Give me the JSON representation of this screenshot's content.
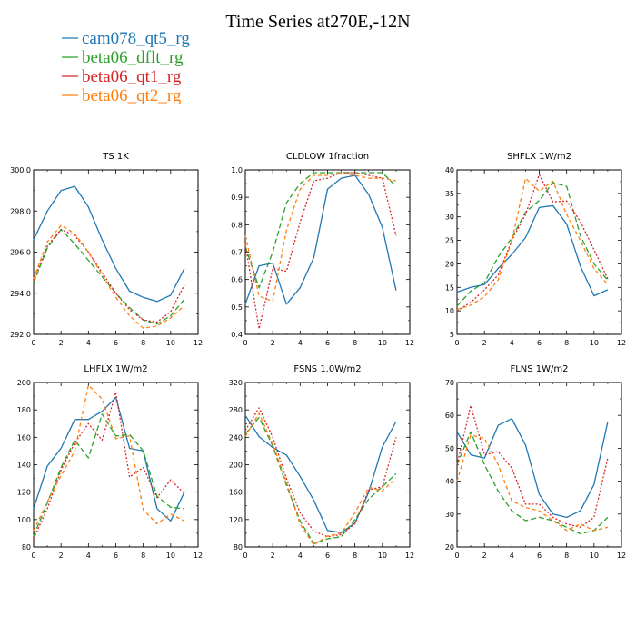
{
  "figure": {
    "title": "Time Series at270E,-12N"
  },
  "legend": [
    {
      "name": "cam078_qt5_rg",
      "color": "#1f77b4",
      "dash": "solid"
    },
    {
      "name": "beta06_dflt_rg",
      "color": "#2ca02c",
      "dash": "longdash"
    },
    {
      "name": "beta06_qt1_rg",
      "color": "#d62728",
      "dash": "dot"
    },
    {
      "name": "beta06_qt2_rg",
      "color": "#ff7f0e",
      "dash": "dash"
    }
  ],
  "chart_data": [
    {
      "type": "line",
      "title": "TS   1K",
      "xlim": [
        0,
        12
      ],
      "ylim": [
        292,
        300
      ],
      "xticks": [
        0,
        2,
        4,
        6,
        8,
        10,
        12
      ],
      "yticks": [
        292,
        294,
        296,
        298,
        300
      ],
      "ytick_labels": [
        "292.0",
        "294.0",
        "296.0",
        "298.0",
        "300.0"
      ],
      "x": [
        0,
        1,
        2,
        3,
        4,
        5,
        6,
        7,
        8,
        9,
        10,
        11
      ],
      "series": [
        {
          "name": "cam078_qt5_rg",
          "values": [
            296.6,
            298.0,
            299.0,
            299.2,
            298.2,
            296.6,
            295.2,
            294.1,
            293.8,
            293.6,
            293.9,
            295.2
          ]
        },
        {
          "name": "beta06_dflt_rg",
          "values": [
            294.5,
            296.2,
            297.1,
            296.4,
            295.6,
            294.8,
            294.0,
            293.3,
            292.7,
            292.5,
            292.9,
            293.7
          ]
        },
        {
          "name": "beta06_qt1_rg",
          "values": [
            294.6,
            296.3,
            297.1,
            296.8,
            296.0,
            295.0,
            294.0,
            293.2,
            292.7,
            292.6,
            293.1,
            294.4
          ]
        },
        {
          "name": "beta06_qt2_rg",
          "values": [
            294.7,
            296.5,
            297.3,
            296.9,
            296.0,
            294.9,
            293.8,
            292.9,
            292.3,
            292.4,
            292.8,
            293.4
          ]
        }
      ]
    },
    {
      "type": "line",
      "title": "CLDLOW   1fraction",
      "xlim": [
        0,
        12
      ],
      "ylim": [
        0.4,
        1.0
      ],
      "xticks": [
        0,
        2,
        4,
        6,
        8,
        10,
        12
      ],
      "yticks": [
        0.4,
        0.5,
        0.6,
        0.7,
        0.8,
        0.9,
        1.0
      ],
      "ytick_labels": [
        "0.4",
        "0.5",
        "0.6",
        "0.7",
        "0.8",
        "0.9",
        "1.0"
      ],
      "x": [
        0,
        1,
        2,
        3,
        4,
        5,
        6,
        7,
        8,
        9,
        10,
        11
      ],
      "series": [
        {
          "name": "cam078_qt5_rg",
          "values": [
            0.51,
            0.65,
            0.66,
            0.51,
            0.57,
            0.68,
            0.93,
            0.97,
            0.98,
            0.91,
            0.79,
            0.56
          ]
        },
        {
          "name": "beta06_dflt_rg",
          "values": [
            0.72,
            0.57,
            0.7,
            0.88,
            0.95,
            0.99,
            0.99,
            0.99,
            0.99,
            0.99,
            0.99,
            0.94
          ]
        },
        {
          "name": "beta06_qt1_rg",
          "values": [
            0.73,
            0.42,
            0.64,
            0.63,
            0.81,
            0.96,
            0.97,
            0.99,
            0.99,
            0.98,
            0.97,
            0.76
          ]
        },
        {
          "name": "beta06_qt2_rg",
          "values": [
            0.76,
            0.54,
            0.52,
            0.78,
            0.93,
            0.98,
            0.98,
            0.99,
            0.98,
            0.97,
            0.97,
            0.96
          ]
        }
      ]
    },
    {
      "type": "line",
      "title": "SHFLX   1W/m2",
      "xlim": [
        0,
        12
      ],
      "ylim": [
        5,
        40
      ],
      "xticks": [
        0,
        2,
        4,
        6,
        8,
        10,
        12
      ],
      "yticks": [
        5,
        10,
        15,
        20,
        25,
        30,
        35,
        40
      ],
      "ytick_labels": [
        "5",
        "10",
        "15",
        "20",
        "25",
        "30",
        "35",
        "40"
      ],
      "x": [
        0,
        1,
        2,
        3,
        4,
        5,
        6,
        7,
        8,
        9,
        10,
        11
      ],
      "series": [
        {
          "name": "cam078_qt5_rg",
          "values": [
            14.0,
            15.0,
            15.6,
            19.0,
            22.0,
            25.6,
            32.0,
            32.4,
            28.5,
            19.5,
            13.2,
            14.5
          ]
        },
        {
          "name": "beta06_dflt_rg",
          "values": [
            11.0,
            14.2,
            16.0,
            21.5,
            25.5,
            31.0,
            33.5,
            37.3,
            36.5,
            26.0,
            20.0,
            16.5
          ]
        },
        {
          "name": "beta06_qt1_rg",
          "values": [
            10.0,
            11.8,
            14.5,
            17.6,
            25.0,
            30.5,
            39.0,
            33.2,
            33.4,
            29.0,
            23.0,
            16.8
          ]
        },
        {
          "name": "beta06_qt2_rg",
          "values": [
            10.3,
            11.2,
            13.0,
            16.6,
            24.8,
            38.2,
            35.5,
            37.6,
            30.5,
            25.0,
            19.0,
            15.6
          ]
        }
      ]
    },
    {
      "type": "line",
      "title": "LHFLX   1W/m2",
      "xlim": [
        0,
        12
      ],
      "ylim": [
        80,
        200
      ],
      "xticks": [
        0,
        2,
        4,
        6,
        8,
        10,
        12
      ],
      "yticks": [
        80,
        100,
        120,
        140,
        160,
        180,
        200
      ],
      "ytick_labels": [
        "80",
        "100",
        "120",
        "140",
        "160",
        "180",
        "200"
      ],
      "x": [
        0,
        1,
        2,
        3,
        4,
        5,
        6,
        7,
        8,
        9,
        10,
        11
      ],
      "series": [
        {
          "name": "cam078_qt5_rg",
          "values": [
            108,
            139,
            152,
            173,
            173,
            179,
            189,
            152,
            150,
            108,
            99,
            120
          ]
        },
        {
          "name": "beta06_dflt_rg",
          "values": [
            88,
            112,
            138,
            158,
            145,
            177,
            161,
            162,
            150,
            117,
            109,
            108
          ]
        },
        {
          "name": "beta06_qt1_rg",
          "values": [
            86,
            108,
            136,
            156,
            170,
            158,
            193,
            131,
            138,
            116,
            129,
            119
          ]
        },
        {
          "name": "beta06_qt2_rg",
          "values": [
            92,
            113,
            132,
            150,
            198,
            188,
            159,
            161,
            107,
            97,
            104,
            99
          ]
        }
      ]
    },
    {
      "type": "line",
      "title": "FSNS   1.0W/m2",
      "xlim": [
        0,
        12
      ],
      "ylim": [
        80,
        320
      ],
      "xticks": [
        0,
        2,
        4,
        6,
        8,
        10,
        12
      ],
      "yticks": [
        80,
        120,
        160,
        200,
        240,
        280,
        320
      ],
      "ytick_labels": [
        "80",
        "120",
        "160",
        "200",
        "240",
        "280",
        "320"
      ],
      "x": [
        0,
        1,
        2,
        3,
        4,
        5,
        6,
        7,
        8,
        9,
        10,
        11
      ],
      "series": [
        {
          "name": "cam078_qt5_rg",
          "values": [
            272,
            241,
            225,
            214,
            183,
            148,
            104,
            101,
            115,
            160,
            226,
            263
          ]
        },
        {
          "name": "beta06_dflt_rg",
          "values": [
            245,
            269,
            227,
            170,
            118,
            85,
            92,
            95,
            120,
            150,
            168,
            187
          ]
        },
        {
          "name": "beta06_qt1_rg",
          "values": [
            250,
            283,
            240,
            180,
            130,
            103,
            95,
            98,
            114,
            163,
            168,
            240
          ]
        },
        {
          "name": "beta06_qt2_rg",
          "values": [
            241,
            275,
            230,
            175,
            113,
            83,
            96,
            100,
            130,
            167,
            162,
            180
          ]
        }
      ]
    },
    {
      "type": "line",
      "title": "FLNS   1W/m2",
      "xlim": [
        0,
        12
      ],
      "ylim": [
        20,
        70
      ],
      "xticks": [
        0,
        2,
        4,
        6,
        8,
        10,
        12
      ],
      "yticks": [
        20,
        30,
        40,
        50,
        60,
        70
      ],
      "ytick_labels": [
        "20",
        "30",
        "40",
        "50",
        "60",
        "70"
      ],
      "x": [
        0,
        1,
        2,
        3,
        4,
        5,
        6,
        7,
        8,
        9,
        10,
        11
      ],
      "series": [
        {
          "name": "cam078_qt5_rg",
          "values": [
            55,
            48,
            47,
            57,
            59,
            51,
            36,
            30,
            29,
            31,
            39,
            58
          ]
        },
        {
          "name": "beta06_dflt_rg",
          "values": [
            45,
            55,
            45,
            37,
            31,
            28,
            29,
            28,
            26,
            24,
            25,
            29
          ]
        },
        {
          "name": "beta06_qt1_rg",
          "values": [
            45,
            63,
            48,
            49,
            44,
            33,
            33,
            29,
            27,
            26,
            29,
            47
          ]
        },
        {
          "name": "beta06_qt2_rg",
          "values": [
            40,
            54,
            53,
            45,
            34,
            32,
            31,
            28,
            25,
            27,
            25,
            26
          ]
        }
      ]
    }
  ]
}
